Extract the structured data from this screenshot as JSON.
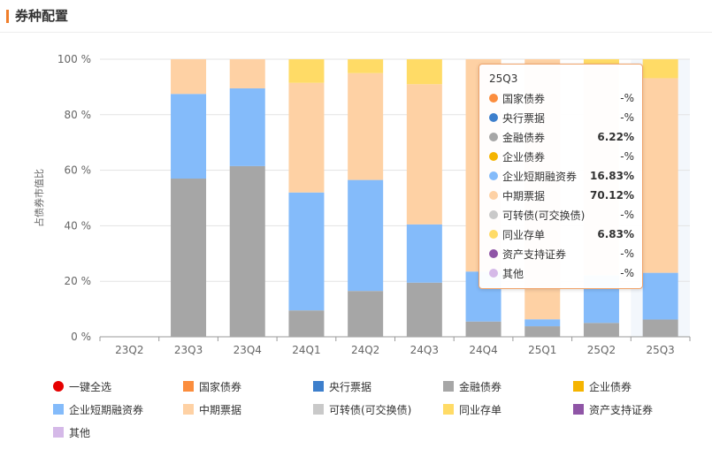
{
  "header": {
    "title": "券种配置"
  },
  "chart_data": {
    "type": "bar",
    "stacked": true,
    "ylabel": "占债券市值比",
    "ylim": [
      0,
      100
    ],
    "yticks": [
      "0 %",
      "20 %",
      "40 %",
      "60 %",
      "80 %",
      "100 %"
    ],
    "categories": [
      "23Q2",
      "23Q3",
      "23Q4",
      "24Q1",
      "24Q2",
      "24Q3",
      "24Q4",
      "25Q1",
      "25Q2",
      "25Q3"
    ],
    "highlighted_category": "25Q3",
    "series": [
      {
        "name": "国家债券",
        "color": "#fb8d3d",
        "values": [
          0,
          0,
          0,
          0,
          0,
          0,
          0,
          0,
          0,
          0
        ]
      },
      {
        "name": "央行票据",
        "color": "#3d7fcc",
        "values": [
          0,
          0,
          0,
          0,
          0,
          0,
          0,
          0,
          0,
          0
        ]
      },
      {
        "name": "金融债券",
        "color": "#a6a6a6",
        "values": [
          0,
          57,
          61.5,
          9.5,
          16.5,
          19.5,
          5.5,
          3.8,
          5,
          6.22
        ]
      },
      {
        "name": "企业债券",
        "color": "#f5b400",
        "values": [
          0,
          0,
          0,
          0,
          0,
          0,
          0,
          0,
          0,
          0
        ]
      },
      {
        "name": "企业短期融资券",
        "color": "#84bbfa",
        "values": [
          0,
          30.5,
          28,
          42.5,
          40,
          21,
          18,
          2.5,
          17.2,
          16.83
        ]
      },
      {
        "name": "中期票据",
        "color": "#fed1a4",
        "values": [
          0,
          12.5,
          10.5,
          39.5,
          38.5,
          50.5,
          76.5,
          93.7,
          76,
          70.12
        ]
      },
      {
        "name": "可转债(可交换债)",
        "color": "#c9c9c9",
        "values": [
          0,
          0,
          0,
          0,
          0,
          0,
          0,
          0,
          0,
          0
        ]
      },
      {
        "name": "同业存单",
        "color": "#ffdb66",
        "values": [
          0,
          0,
          0,
          8.5,
          5,
          9,
          0,
          0,
          1.8,
          6.83
        ]
      },
      {
        "name": "资产支持证券",
        "color": "#8f55a6",
        "values": [
          0,
          0,
          0,
          0,
          0,
          0,
          0,
          0,
          0,
          0
        ]
      },
      {
        "name": "其他",
        "color": "#d5b9e8",
        "values": [
          0,
          0,
          0,
          0,
          0,
          0,
          0,
          0,
          0,
          0
        ]
      }
    ],
    "legend_position": "bottom"
  },
  "legend": {
    "select_all_label": "一键全选",
    "select_all_color": "#e60000"
  },
  "tooltip": {
    "title": "25Q3",
    "rows": [
      {
        "name": "国家债券",
        "value": "-%",
        "color": "#fb8d3d"
      },
      {
        "name": "央行票据",
        "value": "-%",
        "color": "#3d7fcc"
      },
      {
        "name": "金融债券",
        "value": "6.22%",
        "color": "#a6a6a6"
      },
      {
        "name": "企业债券",
        "value": "-%",
        "color": "#f5b400"
      },
      {
        "name": "企业短期融资券",
        "value": "16.83%",
        "color": "#84bbfa"
      },
      {
        "name": "中期票据",
        "value": "70.12%",
        "color": "#fed1a4"
      },
      {
        "name": "可转债(可交换债)",
        "value": "-%",
        "color": "#c9c9c9"
      },
      {
        "name": "同业存单",
        "value": "6.83%",
        "color": "#ffdb66"
      },
      {
        "name": "资产支持证券",
        "value": "-%",
        "color": "#8f55a6"
      },
      {
        "name": "其他",
        "value": "-%",
        "color": "#d5b9e8"
      }
    ]
  }
}
